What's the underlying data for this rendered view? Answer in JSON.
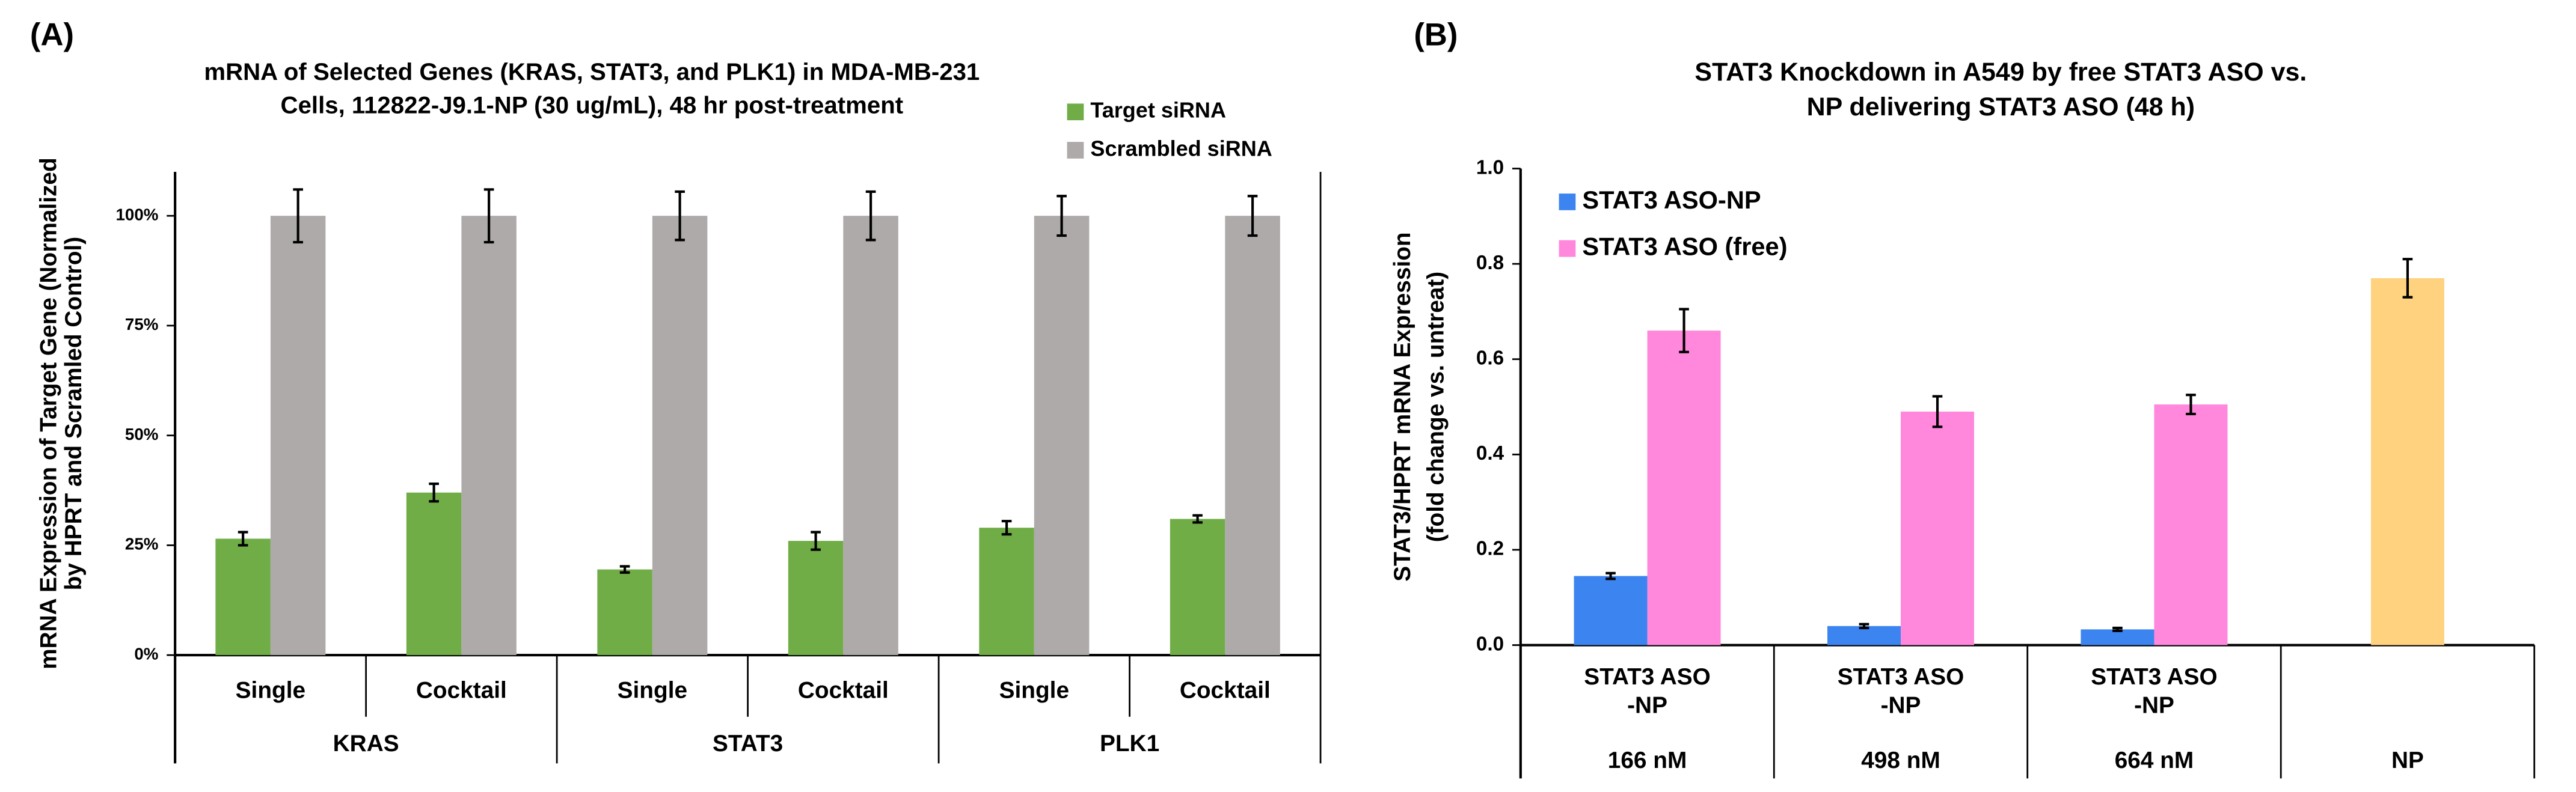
{
  "chart_data": [
    {
      "type": "bar",
      "panel": "(A)",
      "title": [
        "mRNA of Selected Genes (KRAS, STAT3, and PLK1) in MDA-MB-231",
        "Cells, 112822-J9.1-NP (30 ug/mL), 48 hr post-treatment"
      ],
      "y_label": [
        "mRNA Expression of Target Gene (Normalized",
        "by HPRT and Scramled Control)"
      ],
      "categories": [
        "Single",
        "Cocktail",
        "Single",
        "Cocktail",
        "Single",
        "Cocktail"
      ],
      "groups": [
        "KRAS",
        "STAT3",
        "PLK1"
      ],
      "series": [
        {
          "name": "Target siRNA",
          "color": "#70ad47",
          "values": [
            26.5,
            37,
            19.5,
            26,
            29,
            31
          ],
          "errors": [
            1.5,
            2,
            0.7,
            2,
            1.5,
            0.8
          ]
        },
        {
          "name": "Scrambled siRNA",
          "color": "#aeaaaa",
          "values": [
            100,
            100,
            100,
            100,
            100,
            100
          ],
          "errors": [
            6,
            6,
            5.5,
            5.5,
            4.5,
            4.5
          ]
        }
      ],
      "ylim": [
        0,
        110
      ],
      "yticks": [
        {
          "value": 0,
          "label": "0%"
        },
        {
          "value": 25,
          "label": "25%"
        },
        {
          "value": 50,
          "label": "50%"
        },
        {
          "value": 75,
          "label": "75%"
        },
        {
          "value": 100,
          "label": "100%"
        }
      ]
    },
    {
      "type": "bar",
      "panel": "(B)",
      "title": [
        "STAT3 Knockdown in A549 by free STAT3 ASO vs.",
        "NP delivering STAT3 ASO (48 h)"
      ],
      "y_label": [
        "STAT3/HPRT mRNA Expression",
        "(fold change vs. untreat)"
      ],
      "categories": [
        [
          "STAT3 ASO",
          "-NP"
        ],
        [
          "STAT3 ASO",
          "-NP"
        ],
        [
          "STAT3 ASO",
          "-NP"
        ],
        null
      ],
      "groups": [
        "166 nM",
        "498 nM",
        "664 nM",
        "NP"
      ],
      "series": [
        {
          "name": "STAT3 ASO-NP",
          "color": "#3c85f0",
          "values": [
            0.145,
            0.04,
            0.033,
            null
          ],
          "errors": [
            0.006,
            0.004,
            0.003,
            null
          ]
        },
        {
          "name": "STAT3 ASO (free)",
          "color": "#ff88dd",
          "values": [
            0.66,
            0.49,
            0.505,
            null
          ],
          "errors": [
            0.045,
            0.032,
            0.02,
            null
          ]
        },
        {
          "color": "#ffd27f",
          "values": [
            null,
            null,
            null,
            0.77
          ],
          "errors": [
            null,
            null,
            null,
            0.04
          ]
        }
      ],
      "ylim": [
        0,
        1
      ],
      "yticks": [
        {
          "value": 0,
          "label": "0.0"
        },
        0.2,
        0.4,
        0.6,
        0.8,
        {
          "value": 1,
          "label": "1.0"
        }
      ]
    }
  ]
}
